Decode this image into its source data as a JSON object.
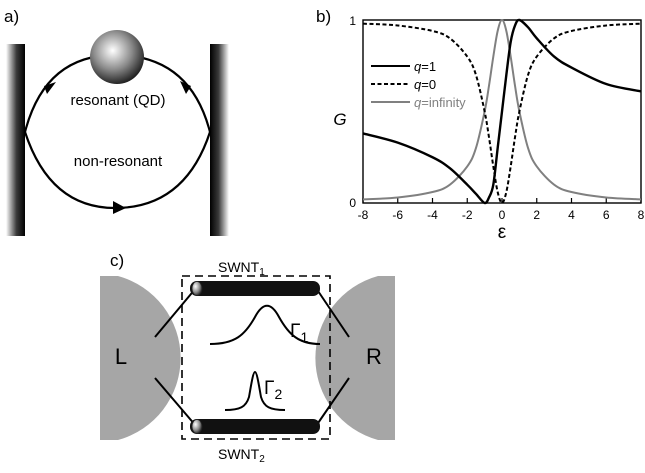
{
  "panels": {
    "a": {
      "label": "a)",
      "top_label": "resonant (QD)",
      "bottom_label": "non-resonant"
    },
    "b": {
      "label": "b)",
      "ylabel": "G",
      "xlabel": "ε",
      "y_ticks": [
        "0",
        "1"
      ],
      "x_ticks": [
        "-8",
        "-6",
        "-4",
        "-2",
        "0",
        "2",
        "4",
        "6",
        "8"
      ]
    },
    "c": {
      "label": "c)",
      "top_tube_label": "SWNT1",
      "bottom_tube_label": "SWNT2",
      "left_lead": "L",
      "right_lead": "R",
      "gamma1": "Γ1",
      "gamma2": "Γ2"
    }
  },
  "chart_data": {
    "type": "line",
    "xlabel": "ε",
    "ylabel": "G",
    "xlim": [
      -8,
      8
    ],
    "ylim": [
      0,
      1
    ],
    "xticks": [
      -8,
      -6,
      -4,
      -2,
      0,
      2,
      4,
      6,
      8
    ],
    "yticks": [
      0,
      1
    ],
    "legend_position": "left",
    "x": [
      -8,
      -6,
      -4,
      -3,
      -2,
      -1.5,
      -1,
      -0.75,
      -0.5,
      -0.25,
      0,
      0.25,
      0.5,
      0.75,
      1,
      1.5,
      2,
      3,
      4,
      6,
      8
    ],
    "series": [
      {
        "name": "q=1",
        "q": "1",
        "style": "solid",
        "color": "#000000",
        "values": [
          0.38,
          0.33,
          0.25,
          0.19,
          0.1,
          0.05,
          0.0,
          0.03,
          0.1,
          0.3,
          0.5,
          0.7,
          0.88,
          0.97,
          1.0,
          0.96,
          0.9,
          0.8,
          0.74,
          0.65,
          0.61
        ]
      },
      {
        "name": "q=0",
        "q": "0",
        "style": "dashed",
        "color": "#000000",
        "values": [
          0.98,
          0.97,
          0.94,
          0.9,
          0.8,
          0.7,
          0.5,
          0.36,
          0.2,
          0.06,
          0.0,
          0.06,
          0.2,
          0.36,
          0.5,
          0.7,
          0.8,
          0.9,
          0.94,
          0.97,
          0.98
        ]
      },
      {
        "name": "q=infinity",
        "q": "infinity",
        "style": "solid",
        "color": "#808080",
        "values": [
          0.02,
          0.03,
          0.06,
          0.1,
          0.2,
          0.3,
          0.5,
          0.64,
          0.8,
          0.94,
          1.0,
          0.94,
          0.8,
          0.64,
          0.5,
          0.3,
          0.2,
          0.1,
          0.06,
          0.03,
          0.02
        ]
      }
    ]
  }
}
